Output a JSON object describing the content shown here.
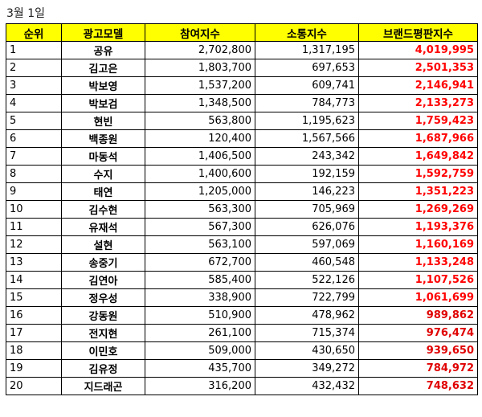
{
  "caption": "3월 1일",
  "colors": {
    "header_bg": "#ffff00",
    "index_text": "#ff0000",
    "index_text_dark": "#e00000"
  },
  "headers": [
    "순위",
    "광고모델",
    "참여지수",
    "소통지수",
    "브랜드평판지수"
  ],
  "rows": [
    {
      "rank": "1",
      "name": "공유",
      "participation": "2,702,800",
      "communication": "1,317,195",
      "brand_index": "4,019,995"
    },
    {
      "rank": "2",
      "name": "김고은",
      "participation": "1,803,700",
      "communication": "697,653",
      "brand_index": "2,501,353"
    },
    {
      "rank": "3",
      "name": "박보영",
      "participation": "1,537,200",
      "communication": "609,741",
      "brand_index": "2,146,941"
    },
    {
      "rank": "4",
      "name": "박보검",
      "participation": "1,348,500",
      "communication": "784,773",
      "brand_index": "2,133,273"
    },
    {
      "rank": "5",
      "name": "현빈",
      "participation": "563,800",
      "communication": "1,195,623",
      "brand_index": "1,759,423"
    },
    {
      "rank": "6",
      "name": "백종원",
      "participation": "120,400",
      "communication": "1,567,566",
      "brand_index": "1,687,966"
    },
    {
      "rank": "7",
      "name": "마동석",
      "participation": "1,406,500",
      "communication": "243,342",
      "brand_index": "1,649,842"
    },
    {
      "rank": "8",
      "name": "수지",
      "participation": "1,400,600",
      "communication": "192,159",
      "brand_index": "1,592,759"
    },
    {
      "rank": "9",
      "name": "태연",
      "participation": "1,205,000",
      "communication": "146,223",
      "brand_index": "1,351,223"
    },
    {
      "rank": "10",
      "name": "김수현",
      "participation": "563,300",
      "communication": "705,969",
      "brand_index": "1,269,269"
    },
    {
      "rank": "11",
      "name": "유재석",
      "participation": "567,300",
      "communication": "626,076",
      "brand_index": "1,193,376"
    },
    {
      "rank": "12",
      "name": "설현",
      "participation": "563,100",
      "communication": "597,069",
      "brand_index": "1,160,169"
    },
    {
      "rank": "13",
      "name": "송중기",
      "participation": "672,700",
      "communication": "460,548",
      "brand_index": "1,133,248"
    },
    {
      "rank": "14",
      "name": "김연아",
      "participation": "585,400",
      "communication": "522,126",
      "brand_index": "1,107,526"
    },
    {
      "rank": "15",
      "name": "정우성",
      "participation": "338,900",
      "communication": "722,799",
      "brand_index": "1,061,699"
    },
    {
      "rank": "16",
      "name": "강동원",
      "participation": "510,900",
      "communication": "478,962",
      "brand_index": "989,862"
    },
    {
      "rank": "17",
      "name": "전지현",
      "participation": "261,100",
      "communication": "715,374",
      "brand_index": "976,474"
    },
    {
      "rank": "18",
      "name": "이민호",
      "participation": "509,000",
      "communication": "430,650",
      "brand_index": "939,650"
    },
    {
      "rank": "19",
      "name": "김유정",
      "participation": "435,700",
      "communication": "349,272",
      "brand_index": "784,972"
    },
    {
      "rank": "20",
      "name": "지드래곤",
      "participation": "316,200",
      "communication": "432,432",
      "brand_index": "748,632"
    }
  ]
}
